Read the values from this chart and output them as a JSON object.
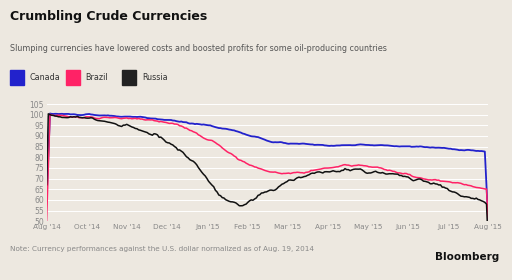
{
  "title": "Crumbling Crude Currencies",
  "subtitle": "Slumping currencies have lowered costs and boosted profits for some oil-producing countries",
  "note": "Note: Currency performances against the U.S. dollar normalized as of Aug. 19, 2014",
  "bloomberg": "Bloomberg",
  "legend_items": [
    "Canada",
    "Brazil",
    "Russia"
  ],
  "legend_colors": [
    "#2222cc",
    "#ff2266",
    "#222222"
  ],
  "line_colors": [
    "#2222cc",
    "#ff2266",
    "#111111"
  ],
  "ylim": [
    50,
    107
  ],
  "yticks": [
    50,
    55,
    60,
    65,
    70,
    75,
    80,
    85,
    90,
    95,
    100,
    105
  ],
  "xlabel_ticks": [
    "Aug '14",
    "Oct '14",
    "Nov '14",
    "Dec '14",
    "Jan '15",
    "Feb '15",
    "Mar '15",
    "Apr '15",
    "May '15",
    "Jun '15",
    "Jul '15",
    "Aug '15"
  ],
  "bg_color": "#ede8e0",
  "plot_bg": "#ede8e0",
  "grid_color": "#ffffff",
  "tick_color": "#888888",
  "title_color": "#111111",
  "subtitle_color": "#555555",
  "note_color": "#888888"
}
